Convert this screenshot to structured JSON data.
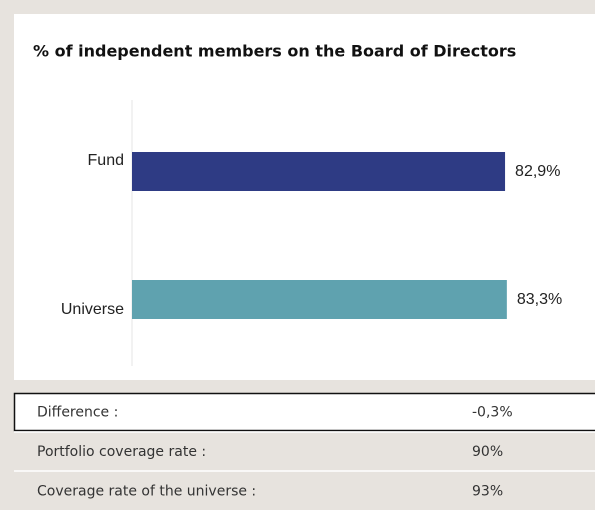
{
  "chart_data": {
    "type": "bar",
    "orientation": "horizontal",
    "title": "% of independent members on the Board of Directors",
    "categories": [
      "Fund",
      "Universe"
    ],
    "values": [
      82.9,
      83.3
    ],
    "value_labels": [
      "82,9%",
      "83,3%"
    ],
    "colors": [
      "#2e3b84",
      "#5fa2af"
    ],
    "xlim": [
      0,
      100
    ]
  },
  "table": {
    "rows": [
      [
        "Difference :",
        "-0,3%"
      ],
      [
        "Portfolio coverage rate :",
        "90%"
      ],
      [
        "Coverage rate of the universe :",
        "93%"
      ]
    ]
  }
}
